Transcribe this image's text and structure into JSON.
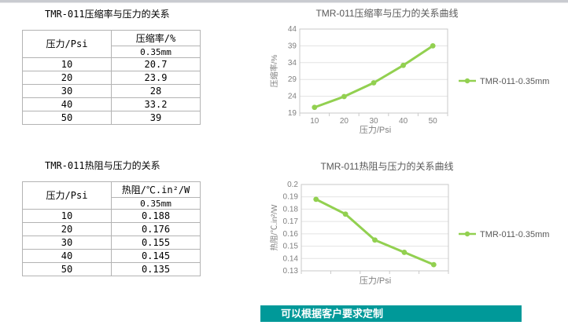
{
  "colors": {
    "series_green": "#92d050",
    "banner_bg": "#009999",
    "banner_text": "#ffffff",
    "grid_gray": "#e3e3e3",
    "axis_gray": "#c9c9c9",
    "tick_text_gray": "#808080",
    "title_text_gray": "#595959"
  },
  "tables": [
    {
      "title": "TMR-011压缩率与压力的关系",
      "col1_header": "压力/Psi",
      "col2_header": "压缩率/%",
      "col2_subheader": "0.35mm",
      "rows": [
        [
          "10",
          "20.7"
        ],
        [
          "20",
          "23.9"
        ],
        [
          "30",
          "28"
        ],
        [
          "40",
          "33.2"
        ],
        [
          "50",
          "39"
        ]
      ]
    },
    {
      "title": "TMR-011热阻与压力的关系",
      "col1_header": "压力/Psi",
      "col2_header": "热阻/℃.in²/W",
      "col2_subheader": "0.35mm",
      "rows": [
        [
          "10",
          "0.188"
        ],
        [
          "20",
          "0.176"
        ],
        [
          "30",
          "0.155"
        ],
        [
          "40",
          "0.145"
        ],
        [
          "50",
          "0.135"
        ]
      ]
    }
  ],
  "chart_data": [
    {
      "type": "line",
      "title": "TMR-011压缩率与压力的关系曲线",
      "xlabel": "压力/Psi",
      "ylabel": "压缩率/%",
      "x": [
        10,
        20,
        30,
        40,
        50
      ],
      "xticklabels": [
        "10",
        "20",
        "30",
        "40",
        "50"
      ],
      "show_xticklabels": true,
      "series": [
        {
          "name": "TMR-011-0.35mm",
          "values": [
            20.7,
            23.9,
            28,
            33.2,
            39
          ]
        }
      ],
      "ylim": [
        19,
        44
      ],
      "yticks": [
        19,
        24,
        29,
        34,
        39,
        44
      ],
      "ytick_labels": [
        "19",
        "24",
        "29",
        "34",
        "39",
        "44"
      ],
      "grid": true,
      "legend_position": "right"
    },
    {
      "type": "line",
      "title": "TMR-011热阻与压力的关系曲线",
      "xlabel": "压力/Psi",
      "ylabel": "热阻/℃.in²/W",
      "x": [
        10,
        20,
        30,
        40,
        50
      ],
      "xticklabels": [],
      "show_xticklabels": false,
      "series": [
        {
          "name": "TMR-011-0.35mm",
          "values": [
            0.188,
            0.176,
            0.155,
            0.145,
            0.135
          ]
        }
      ],
      "ylim": [
        0.13,
        0.2
      ],
      "yticks": [
        0.13,
        0.14,
        0.15,
        0.16,
        0.17,
        0.18,
        0.19,
        0.2
      ],
      "ytick_labels": [
        "0.13",
        "0.14",
        "0.15",
        "0.16",
        "0.17",
        "0.18",
        "0.19",
        "0.2"
      ],
      "grid": true,
      "legend_position": "right"
    }
  ],
  "banner": {
    "text": "可以根据客户要求定制"
  }
}
